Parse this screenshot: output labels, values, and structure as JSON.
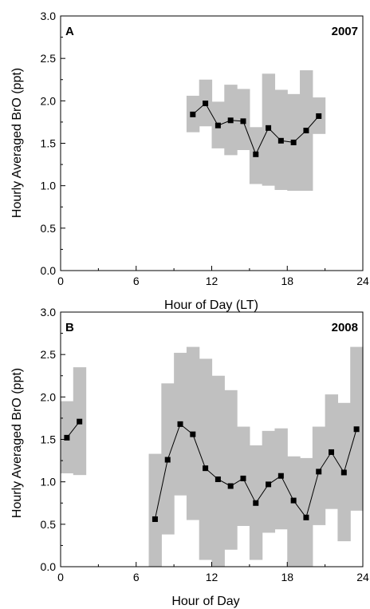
{
  "chart_data": [
    {
      "type": "line",
      "panel_label": "A",
      "annotation": "2007",
      "xlabel": "Hour of Day (LT)",
      "ylabel": "Hourly Averaged BrO (ppt)",
      "xlim": [
        0,
        24
      ],
      "ylim": [
        0,
        3.0
      ],
      "x_ticks": [
        0,
        6,
        12,
        18,
        24
      ],
      "y_ticks": [
        0.0,
        0.5,
        1.0,
        1.5,
        2.0,
        2.5,
        3.0
      ],
      "y_tick_labels": [
        "0.0",
        "0.5",
        "1.0",
        "1.5",
        "2.0",
        "2.5",
        "3.0"
      ],
      "grid": false,
      "series": [
        {
          "style": "line-with-square-markers",
          "x": [
            10.5,
            11.5,
            12.5,
            13.5,
            14.5,
            15.5,
            16.5,
            17.5,
            18.5,
            19.5,
            20.5
          ],
          "y": [
            1.84,
            1.97,
            1.71,
            1.77,
            1.76,
            1.37,
            1.68,
            1.53,
            1.51,
            1.65,
            1.82
          ]
        }
      ],
      "range_band": {
        "color": "#c0c0c0",
        "x": [
          10.5,
          11.5,
          12.5,
          13.5,
          14.5,
          15.5,
          16.5,
          17.5,
          18.5,
          19.5,
          20.5
        ],
        "lower": [
          1.63,
          1.7,
          1.44,
          1.36,
          1.42,
          1.02,
          1.0,
          0.95,
          0.94,
          0.94,
          1.61
        ],
        "upper": [
          2.06,
          2.25,
          1.99,
          2.19,
          2.14,
          1.69,
          2.32,
          2.13,
          2.08,
          2.36,
          2.04
        ]
      }
    },
    {
      "type": "line",
      "panel_label": "B",
      "annotation": "2008",
      "xlabel": "Hour of Day",
      "ylabel": "Hourly Averaged BrO (ppt)",
      "xlim": [
        0,
        24
      ],
      "ylim": [
        0,
        3.0
      ],
      "x_ticks": [
        0,
        6,
        12,
        18,
        24
      ],
      "y_ticks": [
        0.0,
        0.5,
        1.0,
        1.5,
        2.0,
        2.5,
        3.0
      ],
      "y_tick_labels": [
        "0.0",
        "0.5",
        "1.0",
        "1.5",
        "2.0",
        "2.5",
        "3.0"
      ],
      "grid": false,
      "series": [
        {
          "style": "line-with-square-markers",
          "x": [
            0.5,
            1.5
          ],
          "y": [
            1.52,
            1.71
          ]
        },
        {
          "style": "line-with-square-markers",
          "x": [
            7.5,
            8.5,
            9.5,
            10.5,
            11.5,
            12.5,
            13.5,
            14.5,
            15.5,
            16.5,
            17.5,
            18.5,
            19.5,
            20.5,
            21.5,
            22.5,
            23.5
          ],
          "y": [
            0.56,
            1.26,
            1.68,
            1.56,
            1.16,
            1.03,
            0.95,
            1.04,
            0.75,
            0.97,
            1.07,
            0.78,
            0.58,
            1.12,
            1.35,
            1.11,
            1.62
          ]
        }
      ],
      "range_band": {
        "color": "#c0c0c0",
        "x": [
          0.5,
          1.5,
          7.5,
          8.5,
          9.5,
          10.5,
          11.5,
          12.5,
          13.5,
          14.5,
          15.5,
          16.5,
          17.5,
          18.5,
          19.5,
          20.5,
          21.5,
          22.5,
          23.5
        ],
        "lower": [
          1.1,
          1.08,
          0.0,
          0.38,
          0.84,
          0.55,
          0.08,
          0.0,
          0.2,
          0.48,
          0.08,
          0.4,
          0.44,
          0.0,
          0.0,
          0.49,
          0.68,
          0.3,
          0.66
        ],
        "upper": [
          1.95,
          2.35,
          1.33,
          2.16,
          2.52,
          2.59,
          2.45,
          2.25,
          2.08,
          1.65,
          1.43,
          1.6,
          1.63,
          1.3,
          1.28,
          1.65,
          2.03,
          1.93,
          2.59
        ]
      }
    }
  ]
}
